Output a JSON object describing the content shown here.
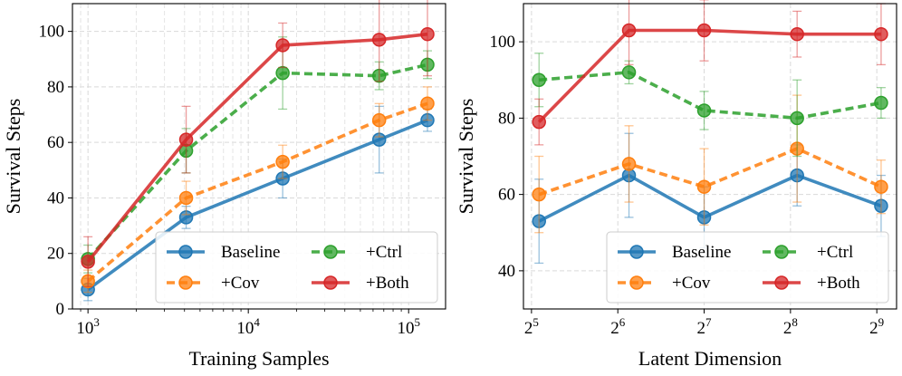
{
  "chart_data": [
    {
      "type": "line",
      "xscale": "log",
      "xlabel": "Training Samples",
      "ylabel": "Survival Steps",
      "xlim": [
        800,
        170000
      ],
      "ylim": [
        0,
        110
      ],
      "yticks": [
        0,
        20,
        40,
        60,
        80,
        100
      ],
      "xticks": [
        {
          "value": 1000,
          "base": "10",
          "exp": "3"
        },
        {
          "value": 10000,
          "base": "10",
          "exp": "4"
        },
        {
          "value": 100000,
          "base": "10",
          "exp": "5"
        }
      ],
      "grid": true,
      "legend_position": "lower-right",
      "x": [
        1000,
        4096,
        16384,
        65536,
        131072
      ],
      "series": [
        {
          "name": "Baseline",
          "color": "#1f77b4",
          "style": "solid",
          "values": [
            7,
            33,
            47,
            61,
            68
          ],
          "err": [
            4,
            4,
            7,
            12,
            4
          ]
        },
        {
          "name": "+Cov",
          "color": "#ff7f0e",
          "style": "dashed",
          "values": [
            10,
            40,
            53,
            68,
            74
          ],
          "err": [
            4,
            6,
            6,
            6,
            6
          ]
        },
        {
          "name": "+Ctrl",
          "color": "#2ca02c",
          "style": "dashed",
          "values": [
            18,
            57,
            85,
            84,
            88
          ],
          "err": [
            5,
            8,
            13,
            5,
            5
          ]
        },
        {
          "name": "+Both",
          "color": "#d62728",
          "style": "solid",
          "values": [
            17,
            61,
            95,
            97,
            99
          ],
          "err": [
            9,
            12,
            8,
            15,
            15
          ]
        }
      ]
    },
    {
      "type": "line",
      "xscale": "log2",
      "xlabel": "Latent Dimension",
      "ylabel": "Survival Steps",
      "xlim": [
        30,
        600
      ],
      "ylim": [
        30,
        110
      ],
      "yticks": [
        40,
        60,
        80,
        100
      ],
      "xticks": [
        {
          "value": 32,
          "base": "2",
          "exp": "5"
        },
        {
          "value": 64,
          "base": "2",
          "exp": "6"
        },
        {
          "value": 128,
          "base": "2",
          "exp": "7"
        },
        {
          "value": 256,
          "base": "2",
          "exp": "8"
        },
        {
          "value": 512,
          "base": "2",
          "exp": "9"
        }
      ],
      "grid": true,
      "legend_position": "lower-right",
      "x": [
        34,
        70,
        128,
        270,
        530
      ],
      "series": [
        {
          "name": "Baseline",
          "color": "#1f77b4",
          "style": "solid",
          "values": [
            53,
            65,
            54,
            65,
            57
          ],
          "err": [
            11,
            11,
            8,
            8,
            8
          ]
        },
        {
          "name": "+Cov",
          "color": "#ff7f0e",
          "style": "dashed",
          "values": [
            60,
            68,
            62,
            72,
            62
          ],
          "err": [
            10,
            10,
            10,
            14,
            7
          ]
        },
        {
          "name": "+Ctrl",
          "color": "#2ca02c",
          "style": "dashed",
          "values": [
            90,
            92,
            82,
            80,
            84
          ],
          "err": [
            7,
            3,
            5,
            10,
            4
          ]
        },
        {
          "name": "+Both",
          "color": "#d62728",
          "style": "solid",
          "values": [
            79,
            103,
            103,
            102,
            102
          ],
          "err": [
            6,
            9,
            8,
            6,
            8
          ]
        }
      ]
    }
  ]
}
